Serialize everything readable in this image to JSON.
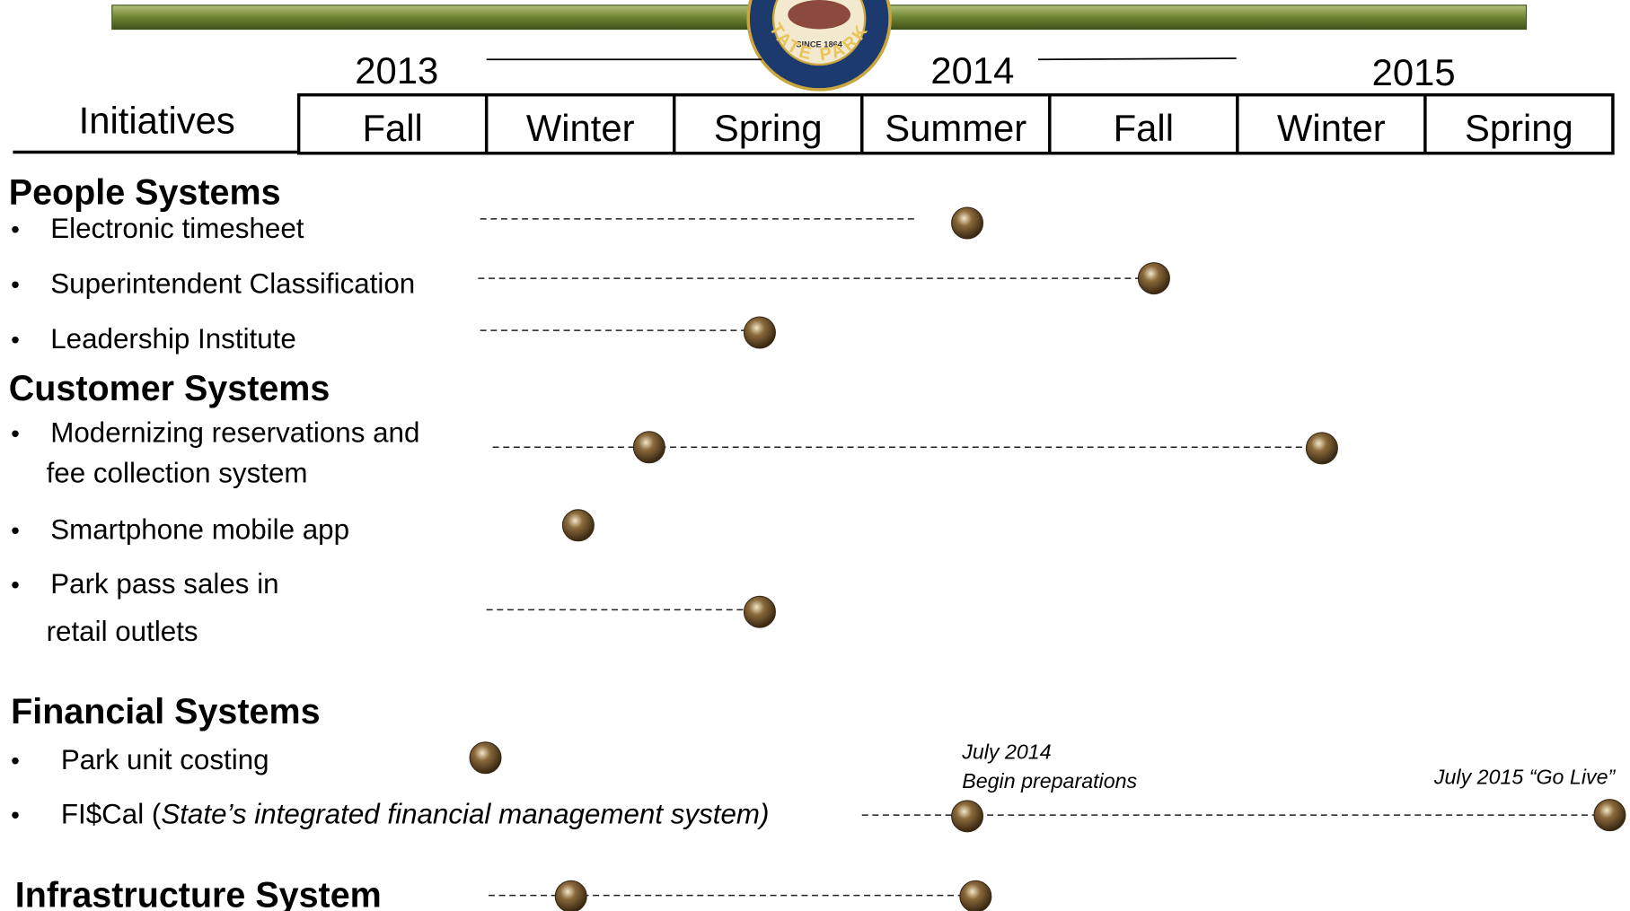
{
  "header": {
    "label": "Initiatives",
    "years": [
      "2013",
      "2014",
      "2015"
    ],
    "seasons": [
      "Fall",
      "Winter",
      "Spring",
      "Summer",
      "Fall",
      "Winter",
      "Spring"
    ],
    "logo": {
      "since": "SINCE 1864",
      "name": "STATE PARKS"
    }
  },
  "groups": [
    {
      "title": "People Systems",
      "items": [
        {
          "lines": [
            "Electronic timesheet"
          ]
        },
        {
          "lines": [
            "Superintendent Classification"
          ]
        },
        {
          "lines": [
            "Leadership Institute"
          ]
        }
      ]
    },
    {
      "title": "Customer Systems",
      "items": [
        {
          "lines": [
            "Modernizing reservations and",
            "fee collection system"
          ]
        },
        {
          "lines": [
            "Smartphone mobile app"
          ]
        },
        {
          "lines": [
            "Park pass sales in",
            "retail outlets"
          ]
        }
      ]
    },
    {
      "title": "Financial Systems",
      "items": [
        {
          "lines": [
            "Park unit costing"
          ]
        },
        {
          "parts": [
            "FI$Cal (",
            "State’s integrated financial management system)"
          ]
        }
      ]
    },
    {
      "title": "Infrastructure System",
      "items": []
    }
  ],
  "annotations": [
    "July 2014",
    "Begin preparations",
    "July 2015 “Go Live”"
  ]
}
